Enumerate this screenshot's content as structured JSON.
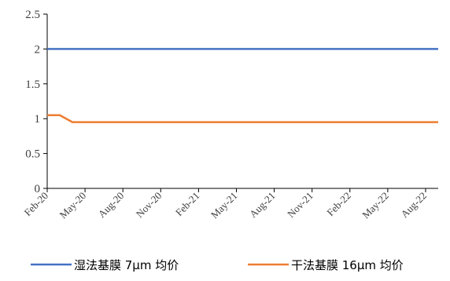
{
  "chart_data": {
    "type": "line",
    "title": "",
    "xlabel": "",
    "ylabel": "",
    "ylim": [
      0,
      2.5
    ],
    "yticks": [
      "0",
      "0.5",
      "1",
      "1.5",
      "2",
      "2.5"
    ],
    "x": [
      "Feb-20",
      "Mar-20",
      "Apr-20",
      "May-20",
      "Jun-20",
      "Jul-20",
      "Aug-20",
      "Sep-20",
      "Oct-20",
      "Nov-20",
      "Dec-20",
      "Jan-21",
      "Feb-21",
      "Mar-21",
      "Apr-21",
      "May-21",
      "Jun-21",
      "Jul-21",
      "Aug-21",
      "Sep-21",
      "Oct-21",
      "Nov-21",
      "Dec-21",
      "Jan-22",
      "Feb-22",
      "Mar-22",
      "Apr-22",
      "May-22",
      "Jun-22",
      "Jul-22",
      "Aug-22",
      "Sep-22"
    ],
    "xticks": [
      "Feb-20",
      "May-20",
      "Aug-20",
      "Nov-20",
      "Feb-21",
      "May-21",
      "Aug-21",
      "Nov-21",
      "Feb-22",
      "May-22",
      "Aug-22"
    ],
    "series": [
      {
        "name": "湿法基膜 7μm 均价",
        "color": "#4472C4",
        "values": [
          2,
          2,
          2,
          2,
          2,
          2,
          2,
          2,
          2,
          2,
          2,
          2,
          2,
          2,
          2,
          2,
          2,
          2,
          2,
          2,
          2,
          2,
          2,
          2,
          2,
          2,
          2,
          2,
          2,
          2,
          2,
          2
        ]
      },
      {
        "name": "干法基膜 16μm 均价",
        "color": "#ED7D31",
        "values": [
          1.05,
          1.05,
          0.95,
          0.95,
          0.95,
          0.95,
          0.95,
          0.95,
          0.95,
          0.95,
          0.95,
          0.95,
          0.95,
          0.95,
          0.95,
          0.95,
          0.95,
          0.95,
          0.95,
          0.95,
          0.95,
          0.95,
          0.95,
          0.95,
          0.95,
          0.95,
          0.95,
          0.95,
          0.95,
          0.95,
          0.95,
          0.95
        ]
      }
    ],
    "grid": false,
    "legend": "bottom"
  },
  "legend": {
    "items": [
      "湿法基膜 7μm 均价",
      "干法基膜 16μm 均价"
    ]
  }
}
